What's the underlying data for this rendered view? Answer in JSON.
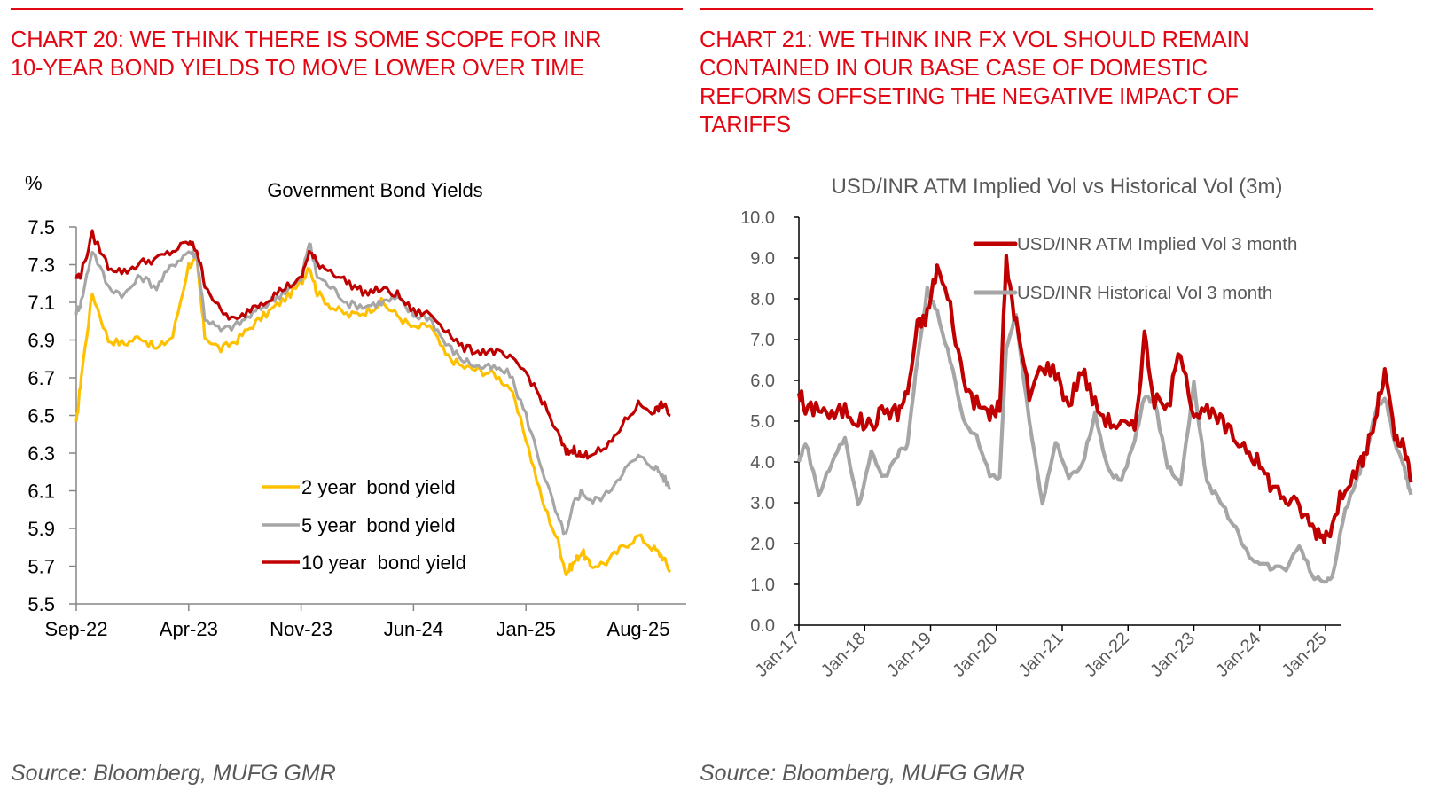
{
  "left_panel": {
    "heading_line1": "CHART 20: WE THINK THERE IS SOME SCOPE FOR INR",
    "heading_line2": "10-YEAR BOND YIELDS TO MOVE LOWER OVER TIME",
    "source": "Source: Bloomberg, MUFG GMR"
  },
  "right_panel": {
    "heading_line1": "CHART 21: WE THINK INR FX VOL SHOULD REMAIN",
    "heading_line2": "CONTAINED IN OUR BASE CASE OF DOMESTIC",
    "heading_line3": "REFORMS OFFSETING THE NEGATIVE IMPACT OF",
    "heading_line4": "TARIFFS",
    "source": "Source: Bloomberg, MUFG GMR"
  },
  "colors": {
    "accent": "#e30613",
    "two_year": "#ffc000",
    "five_year": "#a6a6a6",
    "ten_year": "#c00000",
    "implied": "#c00000",
    "historical": "#a6a6a6"
  },
  "chart_data": [
    {
      "type": "line",
      "title": "Government Bond Yields",
      "ylabel": "%",
      "xlabel": "",
      "ylim": [
        5.5,
        7.5
      ],
      "yticks": [
        "7.5",
        "7.3",
        "7.1",
        "6.9",
        "6.7",
        "6.5",
        "6.3",
        "6.1",
        "5.9",
        "5.7",
        "5.5"
      ],
      "xticks": [
        "Sep-22",
        "Apr-23",
        "Nov-23",
        "Jun-24",
        "Jan-25",
        "Aug-25"
      ],
      "x_unit": "months since Sep-22",
      "xlim": [
        0,
        37
      ],
      "grid": false,
      "legend_position": "bottom-center",
      "x": [
        0,
        0.3,
        1,
        2,
        3,
        4,
        5,
        6,
        7,
        7.5,
        8,
        9,
        10,
        11,
        12,
        13,
        14,
        14.5,
        15,
        16,
        17,
        18,
        19,
        20,
        21,
        22,
        23,
        24,
        25,
        26,
        27,
        28,
        29,
        30,
        30.5,
        31,
        31.5,
        32,
        33,
        34,
        35,
        36,
        36.5,
        37
      ],
      "series": [
        {
          "name": "2 year  bond yield",
          "values": [
            6.45,
            6.7,
            7.15,
            6.9,
            6.88,
            6.92,
            6.85,
            6.92,
            7.3,
            7.32,
            6.92,
            6.85,
            6.9,
            6.98,
            7.05,
            7.12,
            7.2,
            7.3,
            7.15,
            7.07,
            7.03,
            7.05,
            7.1,
            7.03,
            6.96,
            6.98,
            6.82,
            6.76,
            6.74,
            6.72,
            6.65,
            6.38,
            6.05,
            5.83,
            5.66,
            5.72,
            5.78,
            5.7,
            5.72,
            5.8,
            5.86,
            5.79,
            5.75,
            5.67
          ]
        },
        {
          "name": "5 year  bond yield",
          "values": [
            7.05,
            7.1,
            7.38,
            7.18,
            7.14,
            7.24,
            7.18,
            7.3,
            7.37,
            7.35,
            7.02,
            6.95,
            6.98,
            7.04,
            7.1,
            7.16,
            7.22,
            7.42,
            7.24,
            7.17,
            7.09,
            7.08,
            7.1,
            7.12,
            7.03,
            7.02,
            6.88,
            6.8,
            6.76,
            6.75,
            6.72,
            6.5,
            6.22,
            5.95,
            5.86,
            6.04,
            6.1,
            6.04,
            6.08,
            6.2,
            6.28,
            6.23,
            6.18,
            6.11
          ]
        },
        {
          "name": "10 year  bond yield",
          "values": [
            7.23,
            7.25,
            7.46,
            7.29,
            7.26,
            7.31,
            7.33,
            7.37,
            7.42,
            7.38,
            7.2,
            7.05,
            7.0,
            7.08,
            7.12,
            7.18,
            7.22,
            7.37,
            7.31,
            7.26,
            7.2,
            7.15,
            7.17,
            7.14,
            7.05,
            7.04,
            6.96,
            6.86,
            6.84,
            6.84,
            6.8,
            6.73,
            6.58,
            6.4,
            6.3,
            6.32,
            6.28,
            6.3,
            6.32,
            6.45,
            6.56,
            6.52,
            6.56,
            6.5
          ]
        }
      ]
    },
    {
      "type": "line",
      "title": "USD/INR ATM Implied Vol vs Historical Vol (3m)",
      "ylabel": "",
      "xlabel": "",
      "ylim": [
        0.0,
        10.0
      ],
      "yticks": [
        "10.0",
        "9.0",
        "8.0",
        "7.0",
        "6.0",
        "5.0",
        "4.0",
        "3.0",
        "2.0",
        "1.0",
        "0.0"
      ],
      "xticks": [
        "Jan-17",
        "Jan-18",
        "Jan-19",
        "Jan-20",
        "Jan-21",
        "Jan-22",
        "Jan-23",
        "Jan-24",
        "Jan-25"
      ],
      "x_unit": "years since Jan-17",
      "xlim": [
        0,
        9.3
      ],
      "grid": false,
      "legend_position": "top-right",
      "x": [
        0,
        0.1,
        0.3,
        0.5,
        0.7,
        0.9,
        1.1,
        1.3,
        1.5,
        1.65,
        1.8,
        1.95,
        2.1,
        2.3,
        2.5,
        2.7,
        2.9,
        3.05,
        3.15,
        3.3,
        3.5,
        3.7,
        3.9,
        4.1,
        4.3,
        4.5,
        4.7,
        4.9,
        5.1,
        5.25,
        5.4,
        5.6,
        5.8,
        6.0,
        6.2,
        6.4,
        6.6,
        6.8,
        7.0,
        7.2,
        7.4,
        7.6,
        7.8,
        7.95,
        8.1,
        8.3,
        8.5,
        8.6,
        8.75,
        8.9,
        9.05,
        9.2,
        9.3
      ],
      "series": [
        {
          "name": "USD/INR ATM Implied Vol 3 month",
          "values": [
            5.8,
            5.2,
            5.4,
            5.1,
            5.3,
            5.0,
            4.9,
            5.3,
            5.2,
            5.7,
            7.3,
            7.6,
            8.8,
            7.8,
            6.0,
            5.4,
            5.2,
            5.3,
            8.9,
            7.4,
            5.6,
            6.4,
            6.2,
            5.4,
            6.3,
            5.4,
            5.0,
            4.9,
            4.8,
            7.1,
            5.5,
            5.3,
            6.8,
            5.2,
            5.2,
            5.0,
            4.6,
            4.4,
            3.9,
            3.4,
            3.1,
            2.9,
            2.4,
            2.2,
            2.4,
            3.5,
            3.8,
            4.2,
            5.0,
            6.2,
            4.6,
            4.3,
            3.5
          ]
        },
        {
          "name": "USD/INR Historical Vol 3 month",
          "values": [
            4.0,
            4.5,
            3.2,
            4.0,
            4.6,
            2.9,
            4.2,
            3.6,
            4.2,
            4.4,
            6.5,
            8.2,
            7.7,
            6.5,
            5.0,
            4.6,
            3.7,
            3.6,
            6.8,
            7.6,
            5.0,
            3.0,
            4.5,
            3.6,
            3.9,
            5.2,
            3.8,
            3.5,
            4.5,
            5.6,
            5.5,
            3.9,
            3.5,
            5.9,
            3.5,
            3.0,
            2.5,
            1.8,
            1.5,
            1.4,
            1.4,
            2.0,
            1.2,
            1.1,
            1.2,
            2.8,
            3.7,
            4.1,
            5.2,
            5.6,
            4.5,
            3.8,
            3.2
          ]
        }
      ]
    }
  ]
}
